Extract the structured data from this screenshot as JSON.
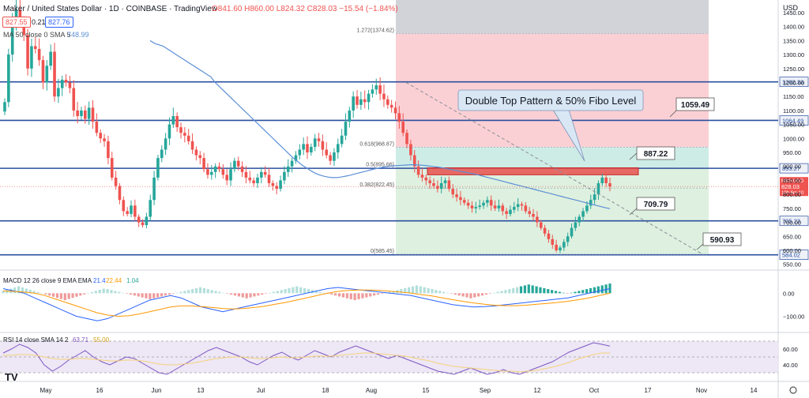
{
  "header": {
    "symbol": "Maker / United States Dollar · 1D · COINBASE · TradingView",
    "ohlc": "O841.60 H860.00 L824.32 C828.03 −15.54 (−1.84%)",
    "price_box_left": "827.55",
    "spread": "0.21",
    "price_box_right": "827.76",
    "ma_label": "MA 50 close 0 SMA 5",
    "ma_value": "748.99",
    "currency": "USD",
    "logo": "TV"
  },
  "annotations": {
    "pattern_label": "Double Top Pattern & 50% Fibo Level",
    "callouts": [
      "1059.49",
      "887.22",
      "709.79",
      "590.93"
    ],
    "fib_labels": [
      "1.272(1374.62)",
      "0.618(968.87)",
      "0.5(895.66)",
      "0.382(822.45)",
      "0(585.45)"
    ],
    "symbol_tag": "MKRUSD",
    "last_price": "828.03",
    "countdown": "10h 6m 10"
  },
  "colors": {
    "up": "#26a69a",
    "down": "#ef5350",
    "hline": "#2a4fa0",
    "ma": "#5b8fd6",
    "macd": "#2962ff",
    "signal": "#ff9800",
    "rsi": "#7e57c2",
    "rsi_ma": "#f5d27a"
  },
  "chart_data": [
    {
      "type": "candlestick",
      "title": "Maker / United States Dollar · 1D · COINBASE",
      "x_ticks": [
        "May",
        "16",
        "Jun",
        "13",
        "Jul",
        "18",
        "Aug",
        "15",
        "Sep",
        "12",
        "Oct",
        "17",
        "Nov",
        "14"
      ],
      "y_ticks": [
        "1450.00",
        "1400.00",
        "1350.00",
        "1300.00",
        "1250.00",
        "1200.00",
        "1150.00",
        "1100.00",
        "1050.00",
        "1000.00",
        "950.00",
        "900.00",
        "850.00",
        "800.00",
        "750.00",
        "700.00",
        "650.00",
        "600.00",
        "550.00"
      ],
      "ylim": [
        535,
        1495
      ],
      "horizontal_levels": [
        {
          "price": 1202.33,
          "label": "1202.33"
        },
        {
          "price": 1064.49,
          "label": "1064.49"
        },
        {
          "price": 893.27,
          "label": "893.27"
        },
        {
          "price": 705.23,
          "label": "705.23"
        },
        {
          "price": 584.02,
          "label": "584.02"
        }
      ],
      "fib_levels": [
        {
          "ratio": "1.272",
          "price": 1374.62
        },
        {
          "ratio": "0.618",
          "price": 968.87
        },
        {
          "ratio": "0.5",
          "price": 895.66
        },
        {
          "ratio": "0.382",
          "price": 822.45
        },
        {
          "ratio": "0",
          "price": 585.45
        }
      ],
      "resistance_zone": [
        870,
        895
      ],
      "close": [
        1130,
        1300,
        1420,
        1460,
        1420,
        1370,
        1250,
        1330,
        1320,
        1280,
        1200,
        1260,
        1310,
        1150,
        1180,
        1210,
        1200,
        1180,
        1100,
        1080,
        1100,
        1070,
        1110,
        1060,
        1020,
        1000,
        990,
        930,
        860,
        830,
        780,
        740,
        730,
        760,
        720,
        700,
        690,
        720,
        780,
        860,
        930,
        960,
        1000,
        1050,
        1080,
        1040,
        1020,
        1010,
        990,
        960,
        940,
        930,
        890,
        870,
        880,
        900,
        890,
        870,
        850,
        890,
        920,
        900,
        880,
        860,
        850,
        840,
        860,
        880,
        870,
        840,
        830,
        820,
        850,
        880,
        900,
        920,
        940,
        960,
        980,
        950,
        970,
        1000,
        990,
        960,
        940,
        920,
        950,
        980,
        1010,
        1060,
        1100,
        1150,
        1120,
        1140,
        1130,
        1160,
        1175,
        1190,
        1160,
        1140,
        1120,
        1110,
        1090,
        1060,
        1020,
        980,
        940,
        900,
        870,
        860,
        850,
        840,
        830,
        820,
        840,
        850,
        820,
        800,
        790,
        780,
        770,
        760,
        750,
        755,
        760,
        770,
        780,
        760,
        750,
        760,
        740,
        730,
        745,
        755,
        765,
        760,
        740,
        730,
        720,
        700,
        680,
        660,
        640,
        620,
        600,
        610,
        630,
        650,
        680,
        700,
        720,
        740,
        760,
        780,
        800,
        840,
        860,
        840,
        828
      ],
      "sma50": [
        1350,
        1340,
        1335,
        1330,
        1320,
        1310,
        1300,
        1290,
        1280,
        1270,
        1260,
        1250,
        1240,
        1230,
        1220,
        1200,
        1185,
        1170,
        1155,
        1140,
        1125,
        1110,
        1095,
        1080,
        1065,
        1050,
        1035,
        1020,
        1005,
        990,
        975,
        960,
        945,
        930,
        918,
        905,
        895,
        885,
        876,
        870,
        865,
        862,
        860,
        860,
        862,
        865,
        868,
        872,
        876,
        880,
        884,
        888,
        892,
        895,
        898,
        900,
        902,
        903,
        904,
        905,
        906,
        906,
        905,
        904,
        902,
        900,
        898,
        896,
        893,
        890,
        887,
        884,
        881,
        878,
        875,
        872,
        868,
        864,
        860,
        856,
        852,
        848,
        844,
        840,
        836,
        832,
        828,
        824,
        820,
        816,
        812,
        808,
        804,
        800,
        796,
        792,
        788,
        784,
        780,
        776,
        772,
        768,
        764,
        760,
        756,
        752,
        749
      ]
    },
    {
      "type": "macd",
      "title": "MACD 12 26 close 9 EMA EMA",
      "values_text": [
        "21.4",
        "22.44",
        "1.04"
      ],
      "y_ticks": [
        "0.00",
        "−100.00"
      ],
      "ylim": [
        -160,
        80
      ],
      "histogram": [
        10,
        15,
        20,
        25,
        30,
        25,
        20,
        15,
        10,
        5,
        0,
        -5,
        -10,
        -15,
        -20,
        -25,
        -30,
        -25,
        -20,
        -15,
        -10,
        -5,
        0,
        5,
        10,
        15,
        20,
        18,
        14,
        10,
        6,
        2,
        -2,
        -6,
        -10,
        -14,
        -18,
        -22,
        -26,
        -22,
        -18,
        -14,
        -10,
        -6,
        -2,
        2,
        6,
        10,
        14,
        18,
        22,
        26,
        22,
        18,
        14,
        10,
        6,
        2,
        -2,
        -6,
        -10,
        -14,
        -18,
        -22,
        -18,
        -14,
        -10,
        -6,
        -2,
        2,
        6,
        10,
        14,
        18,
        22,
        26,
        30,
        26,
        22,
        18,
        14,
        10,
        6,
        2,
        -2,
        -6,
        -10,
        -14,
        -18,
        -22,
        -26,
        -30,
        -26,
        -22,
        -18,
        -14,
        -10,
        -6,
        -2,
        2,
        6,
        10,
        14,
        18,
        22,
        26,
        30,
        34,
        30,
        26,
        22,
        18,
        14,
        10,
        6,
        2,
        -2,
        -6,
        -10,
        -14,
        -18,
        -22,
        -18,
        -14,
        -10,
        -6,
        -2,
        2,
        6,
        10,
        14,
        18,
        22,
        26,
        30,
        34,
        38,
        34,
        30,
        26,
        22,
        18,
        14,
        10,
        6,
        2,
        -2,
        2,
        6,
        10,
        14,
        18,
        22,
        26,
        30,
        34,
        38,
        42
      ],
      "macd_line": [
        20,
        10,
        0,
        -20,
        -40,
        -60,
        -80,
        -100,
        -110,
        -120,
        -110,
        -90,
        -70,
        -50,
        -30,
        -20,
        -10,
        -20,
        -40,
        -60,
        -70,
        -80,
        -70,
        -60,
        -50,
        -40,
        -30,
        -20,
        -10,
        0,
        10,
        20,
        25,
        20,
        15,
        10,
        5,
        0,
        -5,
        -10,
        -20,
        -30,
        -40,
        -50,
        -55,
        -60,
        -58,
        -55,
        -50,
        -45,
        -40,
        -35,
        -30,
        -25,
        -20,
        -10,
        0,
        10,
        20
      ],
      "signal_line": [
        10,
        8,
        5,
        0,
        -10,
        -25,
        -40,
        -55,
        -70,
        -85,
        -95,
        -100,
        -98,
        -90,
        -80,
        -70,
        -60,
        -55,
        -55,
        -58,
        -62,
        -66,
        -68,
        -66,
        -62,
        -56,
        -48,
        -40,
        -30,
        -20,
        -10,
        0,
        8,
        12,
        14,
        14,
        12,
        9,
        5,
        0,
        -6,
        -12,
        -20,
        -28,
        -36,
        -42,
        -48,
        -52,
        -54,
        -54,
        -52,
        -48,
        -44,
        -40,
        -35,
        -28,
        -20,
        -10,
        0
      ]
    },
    {
      "type": "rsi",
      "title": "RSI 14 close SMA 14 2",
      "values_text": [
        "63.71",
        "55.00"
      ],
      "y_ticks": [
        "60.00",
        "40.00"
      ],
      "ylim": [
        22,
        78
      ],
      "rsi": [
        55,
        60,
        66,
        62,
        55,
        40,
        32,
        38,
        46,
        52,
        58,
        50,
        44,
        40,
        45,
        50,
        48,
        42,
        36,
        30,
        28,
        34,
        40,
        46,
        52,
        58,
        62,
        58,
        54,
        50,
        44,
        40,
        46,
        52,
        56,
        50,
        46,
        52,
        58,
        54,
        50,
        56,
        60,
        64,
        60,
        56,
        52,
        48,
        52,
        48,
        44,
        40,
        36,
        32,
        30,
        28,
        32,
        36,
        32,
        28,
        30,
        34,
        30,
        28,
        32,
        36,
        40,
        44,
        50,
        56,
        60,
        64,
        68,
        66,
        63.71
      ],
      "rsi_ma": [
        52,
        52,
        53,
        53,
        52,
        50,
        48,
        47,
        47,
        48,
        48,
        47,
        46,
        45,
        45,
        46,
        46,
        45,
        43,
        41,
        40,
        40,
        41,
        42,
        44,
        46,
        48,
        49,
        50,
        50,
        49,
        48,
        48,
        49,
        50,
        49,
        49,
        50,
        51,
        51,
        51,
        52,
        53,
        54,
        55,
        55,
        54,
        53,
        52,
        51,
        49,
        47,
        45,
        42,
        40,
        38,
        37,
        36,
        35,
        34,
        33,
        32,
        32,
        31,
        32,
        33,
        35,
        37,
        40,
        43,
        47,
        50,
        53,
        55,
        55
      ]
    }
  ]
}
